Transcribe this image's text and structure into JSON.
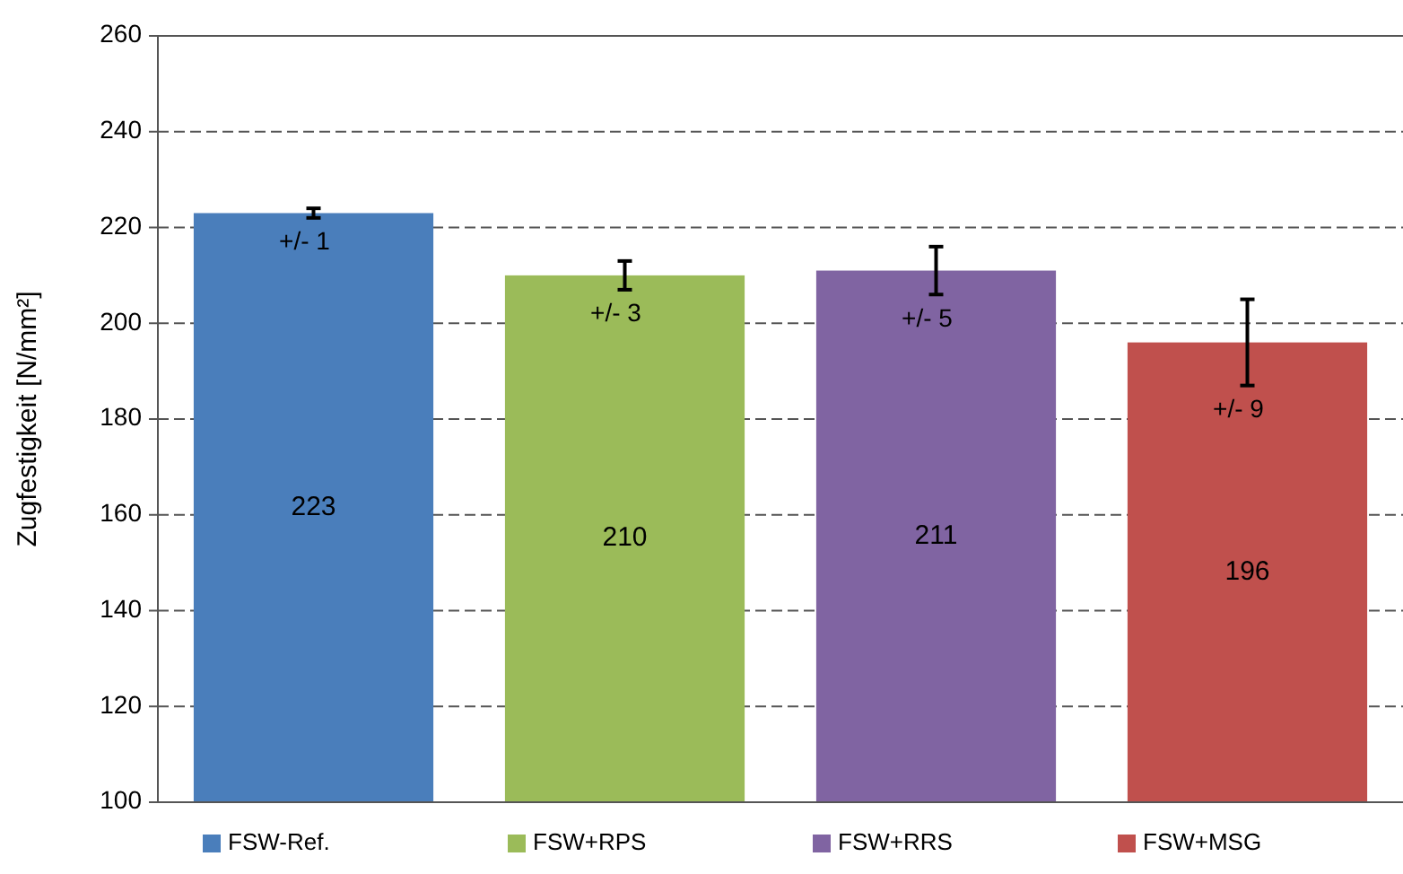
{
  "chart_data": {
    "type": "bar",
    "ylabel": "Zugfestigkeit  [N/mm²]",
    "categories": [
      null,
      null,
      null,
      null
    ],
    "series": [
      {
        "name": "FSW-Ref.",
        "color": "#4a7ebb",
        "values": [
          223,
          null,
          null,
          null
        ],
        "errors": [
          1,
          null,
          null,
          null
        ]
      },
      {
        "name": "FSW+RPS",
        "color": "#9bbb59",
        "values": [
          null,
          210,
          null,
          null
        ],
        "errors": [
          null,
          3,
          null,
          null
        ]
      },
      {
        "name": "FSW+RRS",
        "color": "#8064a2",
        "values": [
          null,
          null,
          211,
          null
        ],
        "errors": [
          null,
          null,
          5,
          null
        ]
      },
      {
        "name": "FSW+MSG",
        "color": "#c0504d",
        "values": [
          null,
          null,
          null,
          196
        ],
        "errors": [
          null,
          null,
          null,
          9
        ]
      }
    ],
    "annotations": [
      "+/- 1",
      "+/- 3",
      "+/- 5",
      "+/- 9"
    ],
    "ylim": [
      100,
      260
    ],
    "yticks": [
      100,
      120,
      140,
      160,
      180,
      200,
      220,
      240,
      260
    ],
    "grid": "y",
    "data_labels": true,
    "legend": "bottom"
  }
}
